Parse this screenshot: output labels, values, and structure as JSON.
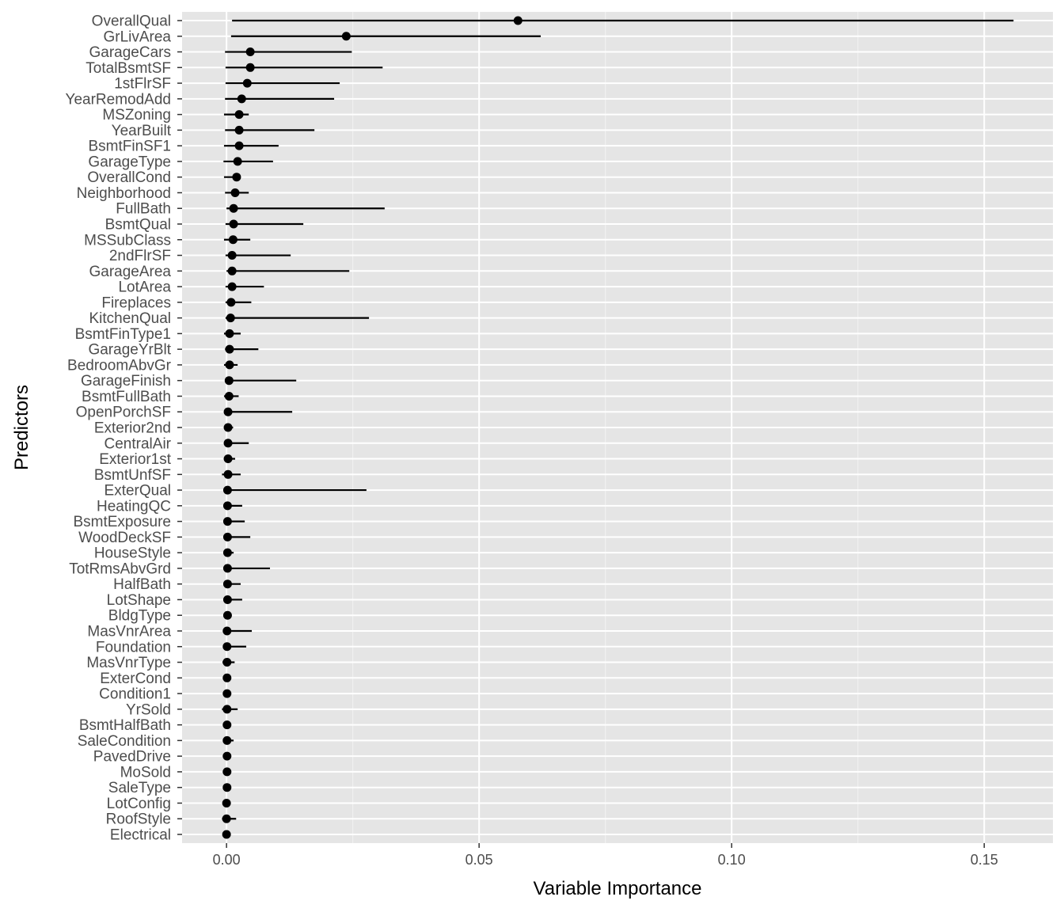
{
  "chart_data": {
    "type": "pointrange",
    "title": "",
    "xlabel": "Variable Importance",
    "ylabel": "Predictors",
    "xlim": [
      -0.0088,
      0.1636
    ],
    "xticks": [
      0,
      0.05,
      0.1,
      0.15
    ],
    "xtick_labels": [
      "0.00",
      "0.05",
      "0.10",
      "0.15"
    ],
    "grid": true,
    "panel_background": "#e5e5e5",
    "point_color": "#000000",
    "series": [
      {
        "name": "OverallQual",
        "value": 0.0577,
        "low": 0.0011,
        "high": 0.1558
      },
      {
        "name": "GrLivArea",
        "value": 0.0237,
        "low": 0.0009,
        "high": 0.0622
      },
      {
        "name": "GarageCars",
        "value": 0.0047,
        "low": -0.0003,
        "high": 0.0248
      },
      {
        "name": "TotalBsmtSF",
        "value": 0.0047,
        "low": -0.0002,
        "high": 0.0309
      },
      {
        "name": "1stFlrSF",
        "value": 0.0041,
        "low": -0.0002,
        "high": 0.0224
      },
      {
        "name": "YearRemodAdd",
        "value": 0.003,
        "low": -0.0003,
        "high": 0.0213
      },
      {
        "name": "MSZoning",
        "value": 0.0025,
        "low": -0.0005,
        "high": 0.0044
      },
      {
        "name": "YearBuilt",
        "value": 0.0025,
        "low": -0.0003,
        "high": 0.0174
      },
      {
        "name": "BsmtFinSF1",
        "value": 0.0025,
        "low": -0.0005,
        "high": 0.0103
      },
      {
        "name": "GarageType",
        "value": 0.0022,
        "low": -0.0006,
        "high": 0.0092
      },
      {
        "name": "OverallCond",
        "value": 0.002,
        "low": -0.0005,
        "high": 0.0023
      },
      {
        "name": "Neighborhood",
        "value": 0.0017,
        "low": -0.0003,
        "high": 0.0044
      },
      {
        "name": "FullBath",
        "value": 0.0014,
        "low": 0.0,
        "high": 0.0313
      },
      {
        "name": "BsmtQual",
        "value": 0.0014,
        "low": -0.0002,
        "high": 0.0152
      },
      {
        "name": "MSSubClass",
        "value": 0.0013,
        "low": -0.0005,
        "high": 0.0047
      },
      {
        "name": "2ndFlrSF",
        "value": 0.0011,
        "low": -0.0002,
        "high": 0.0127
      },
      {
        "name": "GarageArea",
        "value": 0.0011,
        "low": 0.0,
        "high": 0.0243
      },
      {
        "name": "LotArea",
        "value": 0.0011,
        "low": -0.0002,
        "high": 0.0074
      },
      {
        "name": "Fireplaces",
        "value": 0.0009,
        "low": -0.0002,
        "high": 0.0049
      },
      {
        "name": "KitchenQual",
        "value": 0.0008,
        "low": -0.0002,
        "high": 0.0282
      },
      {
        "name": "BsmtFinType1",
        "value": 0.0006,
        "low": -0.0005,
        "high": 0.0028
      },
      {
        "name": "GarageYrBlt",
        "value": 0.0006,
        "low": -0.0003,
        "high": 0.0063
      },
      {
        "name": "BedroomAbvGr",
        "value": 0.0006,
        "low": -0.0005,
        "high": 0.0022
      },
      {
        "name": "GarageFinish",
        "value": 0.0005,
        "low": -0.0002,
        "high": 0.0138
      },
      {
        "name": "BsmtFullBath",
        "value": 0.0005,
        "low": -0.0005,
        "high": 0.0024
      },
      {
        "name": "OpenPorchSF",
        "value": 0.0003,
        "low": -0.0003,
        "high": 0.013
      },
      {
        "name": "Exterior2nd",
        "value": 0.0003,
        "low": -0.0005,
        "high": 0.0013
      },
      {
        "name": "CentralAir",
        "value": 0.0003,
        "low": -0.0003,
        "high": 0.0044
      },
      {
        "name": "Exterior1st",
        "value": 0.0003,
        "low": -0.0005,
        "high": 0.0017
      },
      {
        "name": "BsmtUnfSF",
        "value": 0.0003,
        "low": -0.0009,
        "high": 0.0028
      },
      {
        "name": "ExterQual",
        "value": 0.0002,
        "low": -0.0003,
        "high": 0.0277
      },
      {
        "name": "HeatingQC",
        "value": 0.0002,
        "low": -0.0005,
        "high": 0.0031
      },
      {
        "name": "BsmtExposure",
        "value": 0.0002,
        "low": -0.0003,
        "high": 0.0036
      },
      {
        "name": "WoodDeckSF",
        "value": 0.0002,
        "low": -0.0005,
        "high": 0.0047
      },
      {
        "name": "HouseStyle",
        "value": 0.0002,
        "low": -0.0005,
        "high": 0.0014
      },
      {
        "name": "TotRmsAbvGrd",
        "value": 0.0002,
        "low": -0.0003,
        "high": 0.0086
      },
      {
        "name": "HalfBath",
        "value": 0.0002,
        "low": -0.0005,
        "high": 0.0028
      },
      {
        "name": "LotShape",
        "value": 0.0002,
        "low": -0.0005,
        "high": 0.0031
      },
      {
        "name": "BldgType",
        "value": 0.0002,
        "low": -0.0003,
        "high": 0.0006
      },
      {
        "name": "MasVnrArea",
        "value": 0.0001,
        "low": -0.0006,
        "high": 0.005
      },
      {
        "name": "Foundation",
        "value": 0.0001,
        "low": -0.0005,
        "high": 0.0039
      },
      {
        "name": "MasVnrType",
        "value": 0.0001,
        "low": -0.0008,
        "high": 0.0016
      },
      {
        "name": "ExterCond",
        "value": 0.0001,
        "low": -0.0005,
        "high": 0.0006
      },
      {
        "name": "Condition1",
        "value": 0.0001,
        "low": -0.0005,
        "high": 0.0003
      },
      {
        "name": "YrSold",
        "value": 0.0001,
        "low": -0.0009,
        "high": 0.0022
      },
      {
        "name": "BsmtHalfBath",
        "value": 0.0001,
        "low": -0.0006,
        "high": 0.0006
      },
      {
        "name": "SaleCondition",
        "value": 0.0001,
        "low": -0.0006,
        "high": 0.0014
      },
      {
        "name": "PavedDrive",
        "value": 0.0001,
        "low": -0.0005,
        "high": 0.0005
      },
      {
        "name": "MoSold",
        "value": 0.0001,
        "low": -0.0006,
        "high": 0.0009
      },
      {
        "name": "SaleType",
        "value": 0.0001,
        "low": -0.0005,
        "high": 0.0006
      },
      {
        "name": "LotConfig",
        "value": 0.0,
        "low": -0.0005,
        "high": 0.0003
      },
      {
        "name": "RoofStyle",
        "value": 0.0,
        "low": -0.0009,
        "high": 0.0019
      },
      {
        "name": "Electrical",
        "value": 0.0,
        "low": -0.0005,
        "high": 0.0002
      }
    ]
  }
}
